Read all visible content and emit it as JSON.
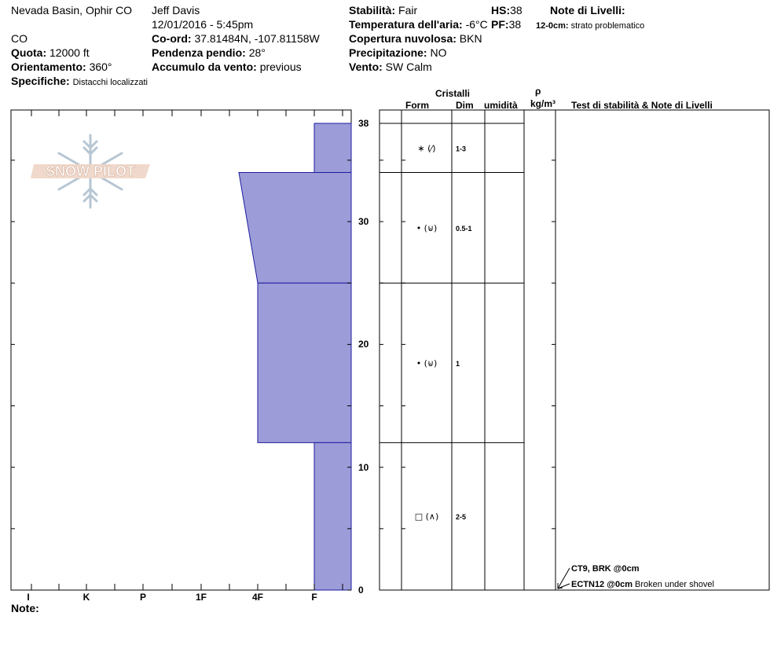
{
  "header": {
    "location": "Nevada Basin, Ophir CO",
    "state": "CO",
    "elevation_label": "Quota:",
    "elevation_value": "12000 ft",
    "aspect_label": "Orientamento:",
    "aspect_value": "360°",
    "specifics_label": "Specifiche:",
    "specifics_value": "Distacchi localizzati",
    "observer": "Jeff Davis",
    "datetime": "12/01/2016 - 5:45pm",
    "coord_label": "Co-ord:",
    "coord_value": "37.81484N, -107.81158W",
    "slope_label": "Pendenza pendio:",
    "slope_value": "28°",
    "wind_loading_label": "Accumulo da vento:",
    "wind_loading_value": "previous",
    "stability_label": "Stabilità:",
    "stability_value": "Fair",
    "air_temp_label": "Temperatura dell'aria:",
    "air_temp_value": "-6°C",
    "sky_label": "Copertura nuvolosa:",
    "sky_value": "BKN",
    "precip_label": "Precipitazione:",
    "precip_value": "NO",
    "wind_label": "Vento:",
    "wind_value": "SW Calm",
    "hs_label": "HS:",
    "hs_value": "38",
    "pf_label": "PF:",
    "pf_value": "38",
    "layer_notes_title": "Note di Livelli:",
    "layer_note_depth": "12-0cm:",
    "layer_note_text": "strato problematico"
  },
  "columns": {
    "crystals": "Cristalli",
    "form": "Form",
    "size": "Dim",
    "moisture": "umidità",
    "rho": "ρ",
    "density_unit": "kg/m³",
    "tests": "Test di stabilità & Note di Livelli"
  },
  "logo_text": "SNOW PILOT",
  "footer": {
    "note_label": "Note:"
  },
  "chart_data": {
    "type": "snow-profile",
    "hardness_scale": [
      "I",
      "K",
      "P",
      "1F",
      "4F",
      "F"
    ],
    "depth_ticks": [
      38,
      30,
      20,
      10,
      0
    ],
    "depth_range": [
      0,
      38
    ],
    "layers": [
      {
        "top": 38,
        "bottom": 34,
        "hardness_top": "F",
        "hardness_bottom": "F",
        "form": "∗ (⁄)",
        "size": "1-3"
      },
      {
        "top": 34,
        "bottom": 25,
        "hardness_top": "4F+",
        "hardness_bottom": "4F",
        "form": "• (⊌)",
        "size": "0.5-1"
      },
      {
        "top": 25,
        "bottom": 12,
        "hardness_top": "4F",
        "hardness_bottom": "4F",
        "form": "• (⊌)",
        "size": "1"
      },
      {
        "top": 12,
        "bottom": 0,
        "hardness_top": "F",
        "hardness_bottom": "F",
        "form": "□ (∧)",
        "size": "2-5"
      }
    ],
    "tests": [
      {
        "result": "CT9, BRK @0cm",
        "note": ""
      },
      {
        "result": "ECTN12 @0cm",
        "note": "Broken under shovel"
      }
    ]
  }
}
